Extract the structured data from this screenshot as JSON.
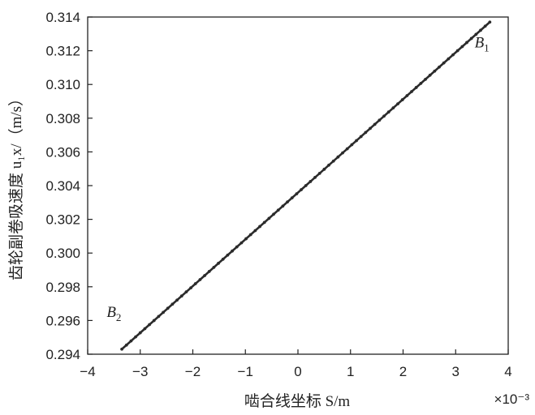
{
  "chart_data": {
    "type": "line",
    "xlabel": "啮合线坐标 S/m",
    "ylabel": "齿轮副卷吸速度 u₁x/（m/s）",
    "x_multiplier": "×10⁻³",
    "xlim": [
      -4,
      4
    ],
    "ylim": [
      0.294,
      0.314
    ],
    "x_ticks": [
      -4,
      -3,
      -2,
      -1,
      0,
      1,
      2,
      3,
      4
    ],
    "x_tick_labels": [
      "−4",
      "−3",
      "−2",
      "−1",
      "0",
      "1",
      "2",
      "3",
      "4"
    ],
    "y_ticks": [
      0.294,
      0.296,
      0.298,
      0.3,
      0.302,
      0.304,
      0.306,
      0.308,
      0.31,
      0.312,
      0.314
    ],
    "y_tick_labels": [
      "0.294",
      "0.296",
      "0.298",
      "0.300",
      "0.302",
      "0.304",
      "0.306",
      "0.308",
      "0.310",
      "0.312",
      "0.314"
    ],
    "grid": false,
    "series": [
      {
        "x": [
          -3.35,
          3.65
        ],
        "y": [
          0.2943,
          0.3137
        ],
        "color": "#2b2b2b"
      }
    ],
    "annotations": [
      {
        "base": "B",
        "sub": "1",
        "x": 3.5,
        "y": 0.3122
      },
      {
        "base": "B",
        "sub": "2",
        "x": -3.5,
        "y": 0.2962
      }
    ]
  }
}
